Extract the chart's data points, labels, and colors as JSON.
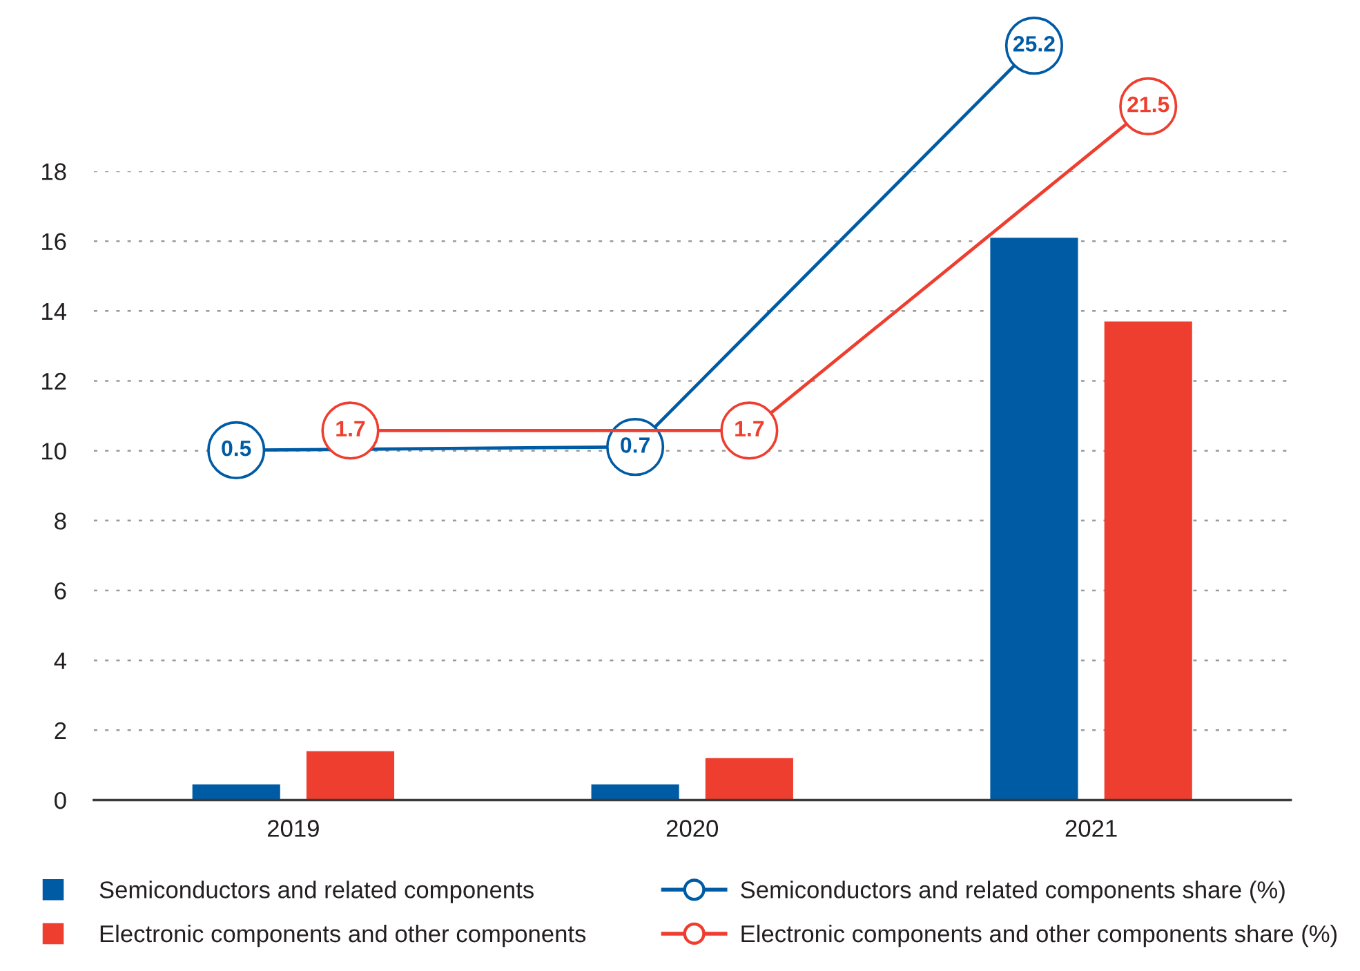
{
  "chart_data": {
    "type": "bar",
    "categories": [
      "2019",
      "2020",
      "2021"
    ],
    "series": [
      {
        "name": "Semiconductors and related components",
        "color": "#005ba5",
        "values": [
          0.45,
          0.45,
          16.1
        ]
      },
      {
        "name": "Electronic components and other components",
        "color": "#ee3e2f",
        "values": [
          1.4,
          1.2,
          13.7
        ]
      },
      {
        "name": "Semiconductors and related components share (%)",
        "type": "line",
        "axis": "y2",
        "color": "#005ba5",
        "values": [
          0.5,
          0.7,
          25.2
        ],
        "value_labels": [
          "0.5",
          "0.7",
          "25.2"
        ]
      },
      {
        "name": "Electronic components and other components share (%)",
        "type": "line",
        "axis": "y2",
        "color": "#ee3e2f",
        "values": [
          1.7,
          1.7,
          21.5
        ],
        "value_labels": [
          "1.7",
          "1.7",
          "21.5"
        ]
      }
    ],
    "ylim": [
      0,
      18
    ],
    "yticks": [
      0,
      2,
      4,
      6,
      8,
      10,
      12,
      14,
      16,
      18
    ],
    "grid": "y",
    "legend": "bottom",
    "marker": "circle"
  }
}
